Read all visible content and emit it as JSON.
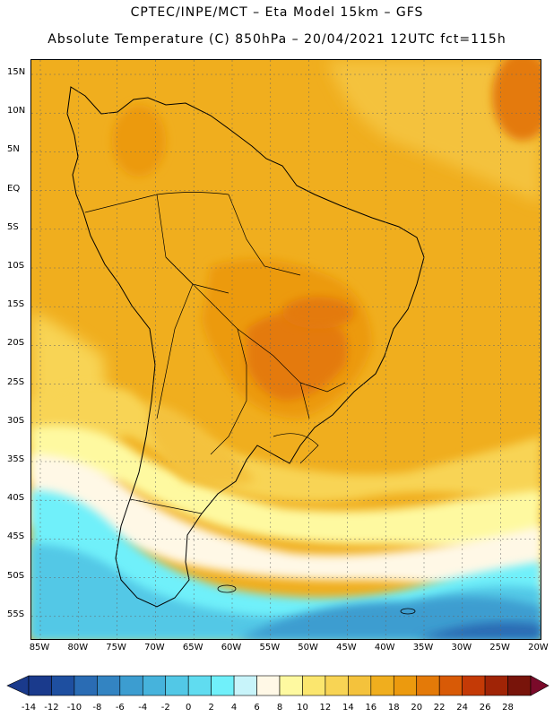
{
  "header": {
    "line1": "CPTEC/INPE/MCT –  Eta Model 15km – GFS",
    "line2": "Absolute Temperature (C) 850hPa – 20/04/2021 12UTC fct=115h"
  },
  "map": {
    "region": "South America",
    "lat_labels": [
      "15N",
      "10N",
      "5N",
      "EQ",
      "5S",
      "10S",
      "15S",
      "20S",
      "25S",
      "30S",
      "35S",
      "40S",
      "45S",
      "50S",
      "55S"
    ],
    "lon_labels": [
      "85W",
      "80W",
      "75W",
      "70W",
      "65W",
      "60W",
      "55W",
      "50W",
      "45W",
      "40W",
      "35W",
      "30W",
      "25W",
      "20W"
    ]
  },
  "colorbar": {
    "tick_labels": [
      "-14",
      "-12",
      "-10",
      "-8",
      "-6",
      "-4",
      "-2",
      "0",
      "2",
      "4",
      "6",
      "8",
      "10",
      "12",
      "14",
      "16",
      "18",
      "20",
      "22",
      "24",
      "26",
      "28"
    ],
    "colors": [
      "#1a3a8c",
      "#1e4fa0",
      "#2a6cb4",
      "#3384c2",
      "#3c9dd0",
      "#46b3dc",
      "#52c8e6",
      "#60dcf0",
      "#70f0fa",
      "#c8f4fa",
      "#fff8e6",
      "#fef9a0",
      "#fbe66e",
      "#f8d454",
      "#f4c23c",
      "#f0ae1e",
      "#ec9a0e",
      "#e47a08",
      "#d85a06",
      "#c43a06",
      "#a02406",
      "#78140a"
    ],
    "under_color": "#1a3a8c",
    "over_color": "#7a0a2a"
  }
}
